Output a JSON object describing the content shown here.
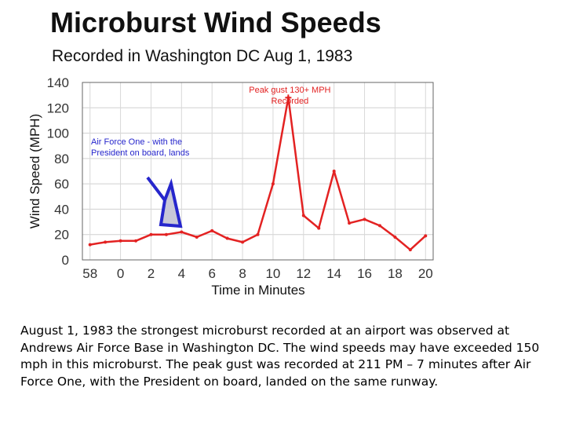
{
  "chart_data": {
    "type": "line",
    "title": "Microburst Wind Speeds",
    "subtitle": "Recorded in Washington DC Aug 1, 1983",
    "xlabel": "Time in Minutes",
    "ylabel": "Wind Speed (MPH)",
    "ylim": [
      0,
      140
    ],
    "yticks": [
      "0",
      "20",
      "40",
      "60",
      "80",
      "100",
      "120",
      "140"
    ],
    "xticks": [
      "58",
      "0",
      "2",
      "4",
      "6",
      "8",
      "10",
      "12",
      "14",
      "16",
      "18",
      "20"
    ],
    "grid": true,
    "line_color": "#e32222",
    "arrow_color": "#2626cc",
    "series": [
      {
        "x": [
          -2.0,
          -1.0,
          0.0,
          1.0,
          2.0,
          3.0,
          4.0,
          5.0,
          6.0,
          7.0,
          8.0,
          9.0,
          10.0,
          11.0,
          12.0,
          13.0,
          14.0,
          15.0,
          16.0,
          17.0,
          18.0,
          19.0,
          20.0
        ],
        "y": [
          12,
          14,
          15,
          15,
          20,
          20,
          22,
          18,
          23,
          17,
          14,
          20,
          60,
          128,
          35,
          25,
          70,
          29,
          32,
          27,
          18,
          8,
          19
        ]
      }
    ],
    "annotations": [
      {
        "id": "peak",
        "text_lines": [
          "Peak gust 130+ MPH",
          "Recorded"
        ],
        "x": 11,
        "y": 128,
        "color": "#e32222"
      },
      {
        "id": "af1",
        "text_lines": [
          "Air Force One - with the",
          "President on board, lands"
        ],
        "x": 4,
        "y": 26,
        "color": "#2626cc"
      }
    ]
  },
  "caption": "August 1, 1983 the strongest microburst recorded at an airport was observed at Andrews Air Force Base in Washington DC.  The wind speeds may have exceeded 150 mph in this microburst.  The peak gust was recorded at 211 PM – 7 minutes after Air Force One, with the President on board, landed on the same runway."
}
